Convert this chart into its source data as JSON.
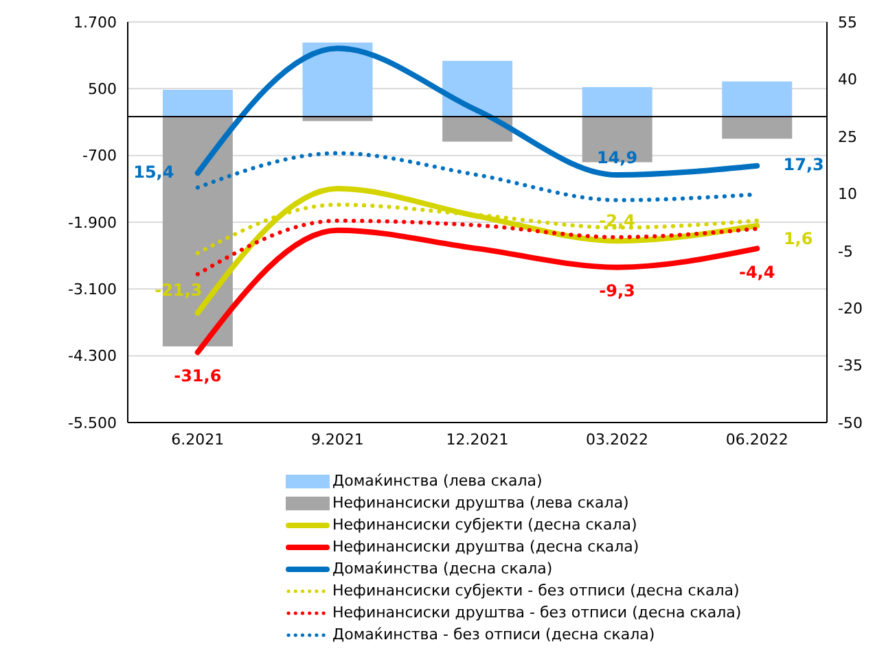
{
  "chart_data": {
    "type": "bar",
    "stacked": true,
    "categories": [
      "6.2021",
      "9.2021",
      "12.2021",
      "03.2022",
      "06.2022"
    ],
    "series": [
      {
        "name": "Домаќинства (лева скала)",
        "color": "#99ccff",
        "values": [
          480,
          1330,
          1000,
          530,
          630
        ]
      },
      {
        "name": "Нефинансиски друштва (лева скала)",
        "color": "#a6a6a6",
        "values": [
          -4130,
          -80,
          -450,
          -820,
          -400
        ]
      },
      {
        "name": "Нефинансиски субјекти (десна скала)",
        "type": "line",
        "axis": "y2",
        "line_style": "solid",
        "color": "#d4d400",
        "values": [
          -21.3,
          11.3,
          4.1,
          -2.4,
          1.6
        ],
        "value_labels": [
          "-21,3",
          null,
          null,
          "-2,4",
          "1,6"
        ]
      },
      {
        "name": "Нефинансиски друштва (десна скала)",
        "type": "line",
        "axis": "y2",
        "line_style": "solid",
        "color": "#ff0000",
        "values": [
          -31.6,
          0.4,
          -4.4,
          -9.3,
          -4.4
        ],
        "value_labels": [
          "-31,6",
          null,
          null,
          "-9,3",
          "-4,4"
        ]
      },
      {
        "name": "Домаќинства (десна скала)",
        "type": "line",
        "axis": "y2",
        "line_style": "solid",
        "color": "#0070c0",
        "values": [
          15.4,
          48.1,
          31.8,
          14.9,
          17.3
        ],
        "value_labels": [
          "15,4",
          null,
          null,
          "14,9",
          "17,3"
        ]
      },
      {
        "name": "Нефинансиски субјекти - без отписи (десна скала)",
        "type": "line",
        "axis": "y2",
        "line_style": "dotted",
        "color": "#d4d400",
        "values": [
          -5.6,
          7.1,
          4.4,
          1.1,
          2.9
        ]
      },
      {
        "name": "Нефинансиски друштва - без отписи (десна скала)",
        "type": "line",
        "axis": "y2",
        "line_style": "dotted",
        "color": "#ff0000",
        "values": [
          -11.1,
          2.9,
          1.7,
          -1.4,
          0.8
        ]
      },
      {
        "name": "Домаќинства - без отписи (десна скала)",
        "type": "line",
        "axis": "y2",
        "line_style": "dotted",
        "color": "#0070c0",
        "values": [
          11.6,
          20.6,
          14.9,
          8.3,
          9.8
        ]
      }
    ],
    "ylim": [
      -5500,
      1700
    ],
    "yticks": [
      {
        "value": 1700,
        "label": "1.700"
      },
      {
        "value": 500,
        "label": "500"
      },
      {
        "value": -700,
        "label": "-700"
      },
      {
        "value": -1900,
        "label": "-1.900"
      },
      {
        "value": -3100,
        "label": "-3.100"
      },
      {
        "value": -4300,
        "label": "-4.300"
      },
      {
        "value": -5500,
        "label": "-5.500"
      }
    ],
    "y2lim": [
      -50,
      55
    ],
    "y2ticks": [
      55,
      40,
      25,
      10,
      -5,
      -20,
      -35,
      -50
    ],
    "ref_lines": [
      {
        "axis": "y",
        "value": 0,
        "color": "#000000"
      }
    ],
    "grid": "y",
    "legend": "bottom",
    "marker": "none"
  }
}
